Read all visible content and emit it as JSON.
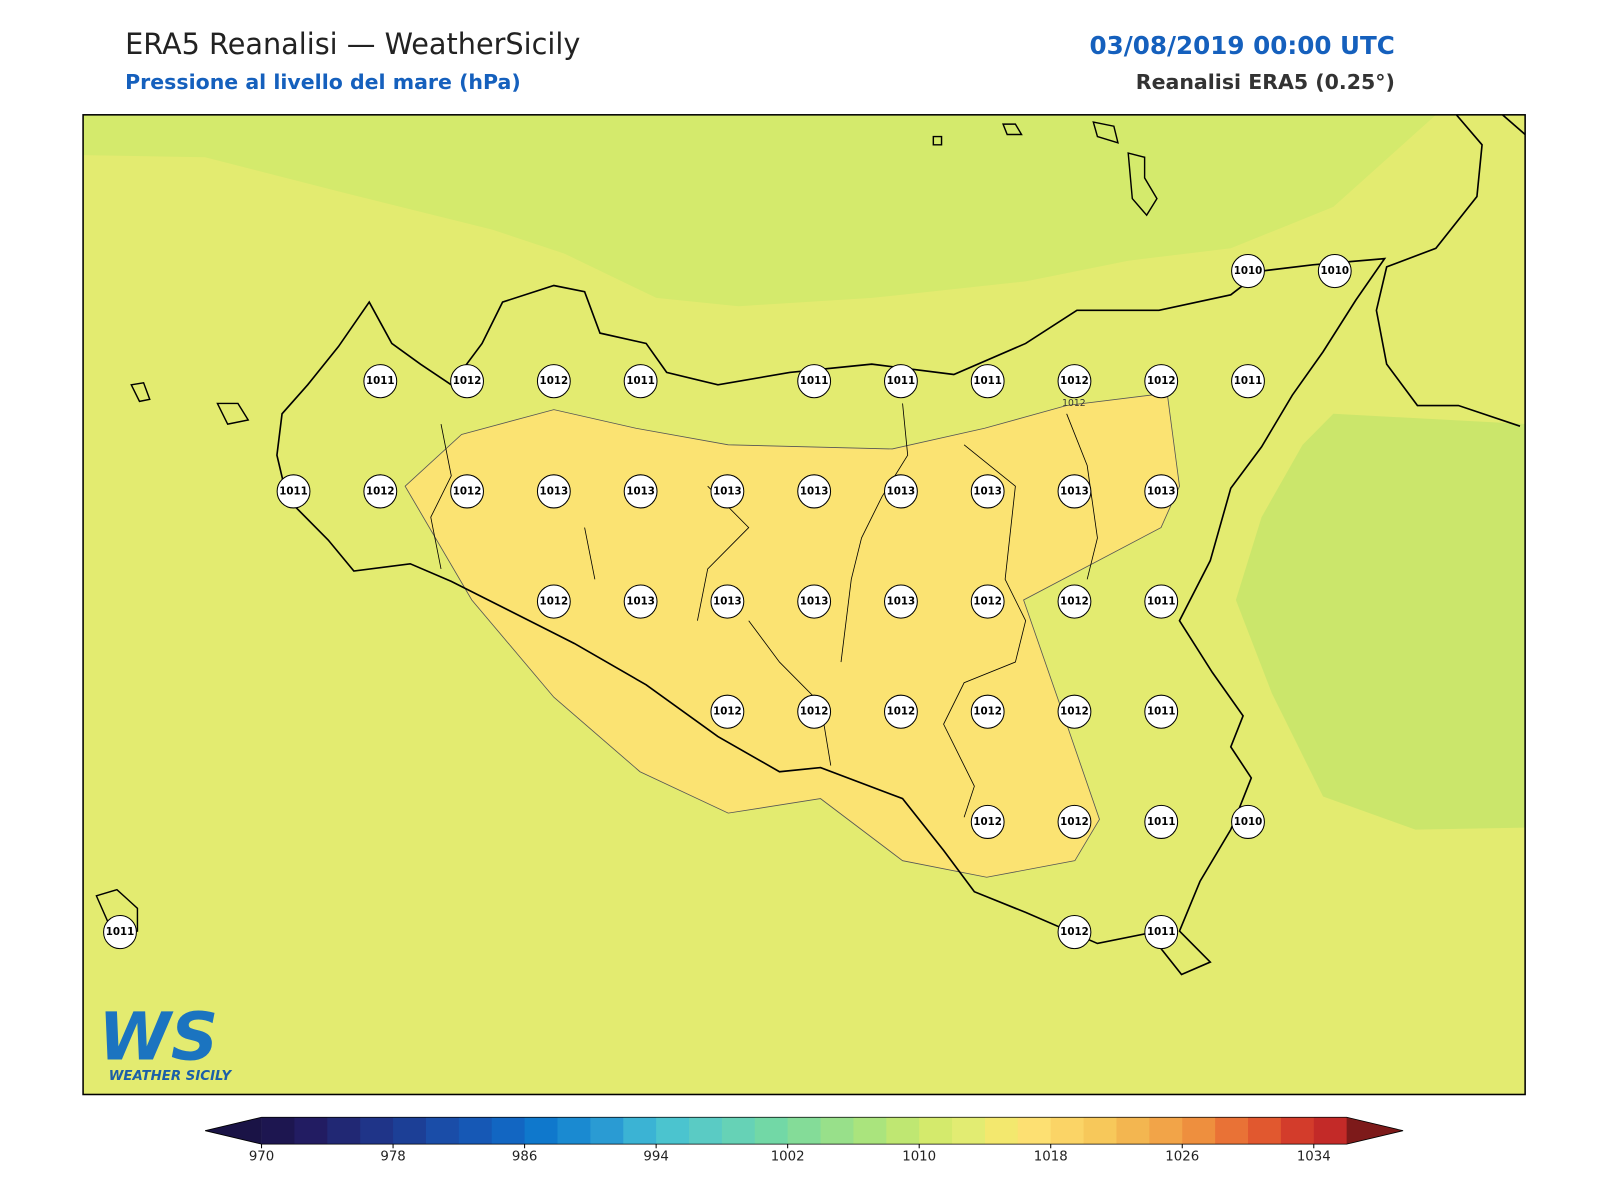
{
  "header": {
    "title": "ERA5 Reanalisi — WeatherSicily",
    "subtitle": "Pressione al livello del mare (hPa)",
    "date": "03/08/2019 00:00 UTC",
    "source": "Reanalisi ERA5 (0.25°)"
  },
  "stations": [
    [
      null,
      null,
      null,
      null,
      null,
      null,
      null,
      null,
      null,
      null,
      null,
      null,
      null,
      1010,
      1010
    ],
    [
      null,
      null,
      null,
      1011,
      1012,
      1012,
      1011,
      null,
      1011,
      1011,
      1011,
      1012,
      1012,
      1011,
      null
    ],
    [
      null,
      null,
      1011,
      1012,
      1012,
      1013,
      1013,
      1013,
      1013,
      1013,
      1013,
      1013,
      1013,
      null,
      null
    ],
    [
      null,
      null,
      null,
      null,
      null,
      1012,
      1013,
      1013,
      1013,
      1013,
      1012,
      1012,
      1011,
      null,
      null
    ],
    [
      null,
      null,
      null,
      null,
      null,
      null,
      null,
      1012,
      1012,
      1012,
      1012,
      1012,
      1011,
      null,
      null
    ],
    [
      null,
      null,
      null,
      null,
      null,
      null,
      null,
      null,
      null,
      null,
      1012,
      1012,
      1011,
      1010,
      null
    ],
    [
      1011,
      null,
      null,
      null,
      null,
      null,
      null,
      null,
      null,
      null,
      null,
      1012,
      1011,
      null,
      null
    ]
  ],
  "contour_label": 1012,
  "logo": {
    "mark": "WS",
    "name": "WEATHER SICILY"
  },
  "colorbar": {
    "lim": [
      970,
      1036
    ],
    "ticks": [
      970,
      978,
      986,
      994,
      1002,
      1010,
      1018,
      1026,
      1034
    ],
    "colors": [
      "#1d1650",
      "#221c62",
      "#212874",
      "#1f3488",
      "#1c3f96",
      "#1a4da8",
      "#1658b5",
      "#1266c2",
      "#0f78cc",
      "#1a8ad1",
      "#2a9bd3",
      "#3bb3d4",
      "#4bc4cf",
      "#5acbc4",
      "#66d2b6",
      "#72d8a6",
      "#84dc98",
      "#98e08a",
      "#aae47d",
      "#bfe772",
      "#d4ea6c",
      "#e2ec72",
      "#f3e86e",
      "#fde072",
      "#fbd466",
      "#f7c85a",
      "#f3b650",
      "#f2a448",
      "#ee8f3e",
      "#e97236",
      "#e1582f",
      "#d33c2b",
      "#c32a28"
    ],
    "under_color": "#1a1346",
    "over_color": "#7d1a1a"
  }
}
